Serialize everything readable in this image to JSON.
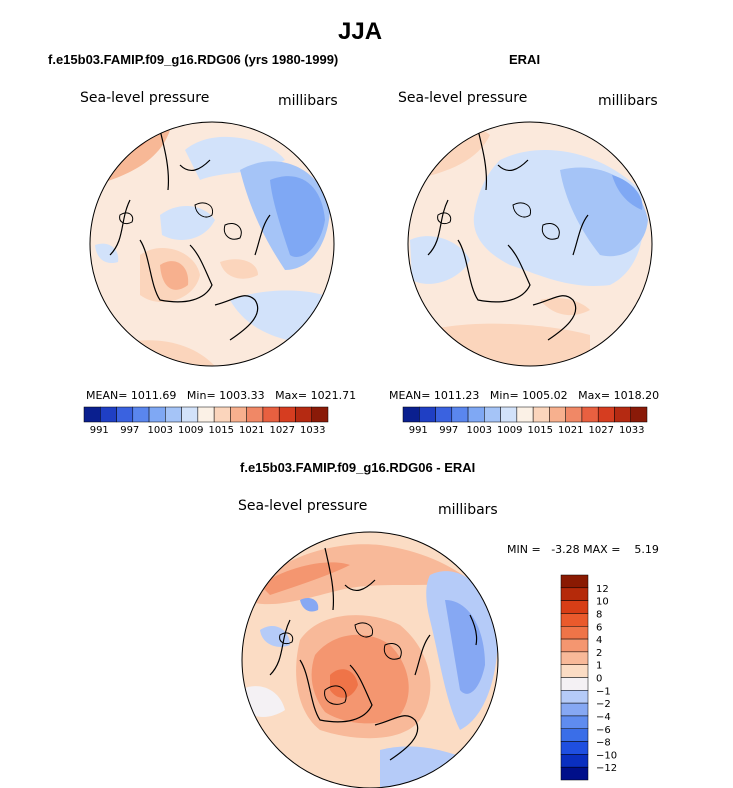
{
  "figure": {
    "season": "JJA",
    "top_left_title": "f.e15b03.FAMIP.f09_g16.RDG06 (yrs 1980-1999)",
    "top_right_title": "ERAI",
    "bottom_title": "f.e15b03.FAMIP.f09_g16.RDG06 - ERAI"
  },
  "colors": {
    "scale_abs": [
      "#0a1f8f",
      "#1f3fc4",
      "#3a62e0",
      "#5a86ee",
      "#7fa8f4",
      "#a5c4f7",
      "#d2e2fa",
      "#fbf1e6",
      "#fbd5bc",
      "#f7b08e",
      "#f08866",
      "#e86040",
      "#d63d20",
      "#b52a12",
      "#8a1a08"
    ],
    "scale_diff": [
      "#000f8a",
      "#0a2fc0",
      "#1f4fe0",
      "#3a6ee8",
      "#5f8cef",
      "#86a8f3",
      "#b5cbf8",
      "#f4f1f4",
      "#fbdcc4",
      "#f8b999",
      "#f49670",
      "#ef7448",
      "#ea5a2c",
      "#d83e16",
      "#b52a0a",
      "#8a1a02"
    ],
    "coastline": "#000000"
  },
  "chart_data": [
    {
      "type": "heatmap",
      "projection": "north-polar-stereographic",
      "title": "f.e15b03.FAMIP.f09_g16.RDG06 (yrs 1980-1999)",
      "variable": "Sea-level pressure",
      "units": "millibars",
      "stats": {
        "mean_label": "MEAN=",
        "mean": "1011.69",
        "min_label": "Min=",
        "min": "1003.33",
        "max_label": "Max=",
        "max": "1021.71"
      },
      "colorbar_ticks": [
        "991",
        "997",
        "1003",
        "1009",
        "1015",
        "1021",
        "1027",
        "1033"
      ],
      "colorbar_range": [
        988,
        1036
      ]
    },
    {
      "type": "heatmap",
      "projection": "north-polar-stereographic",
      "title": "ERAI",
      "variable": "Sea-level pressure",
      "units": "millibars",
      "stats": {
        "mean_label": "MEAN=",
        "mean": "1011.23",
        "min_label": "Min=",
        "min": "1005.02",
        "max_label": "Max=",
        "max": "1018.20"
      },
      "colorbar_ticks": [
        "991",
        "997",
        "1003",
        "1009",
        "1015",
        "1021",
        "1027",
        "1033"
      ],
      "colorbar_range": [
        988,
        1036
      ]
    },
    {
      "type": "heatmap",
      "projection": "north-polar-stereographic",
      "title": "f.e15b03.FAMIP.f09_g16.RDG06 - ERAI",
      "variable": "Sea-level pressure",
      "units": "millibars",
      "stats": {
        "min_label": "MIN =",
        "min": "-3.28",
        "max_label": "MAX =",
        "max": "5.19"
      },
      "colorbar_levels": [
        "12",
        "10",
        "8",
        "6",
        "4",
        "2",
        "1",
        "0",
        "−1",
        "−2",
        "−4",
        "−6",
        "−8",
        "−10",
        "−12"
      ]
    }
  ]
}
